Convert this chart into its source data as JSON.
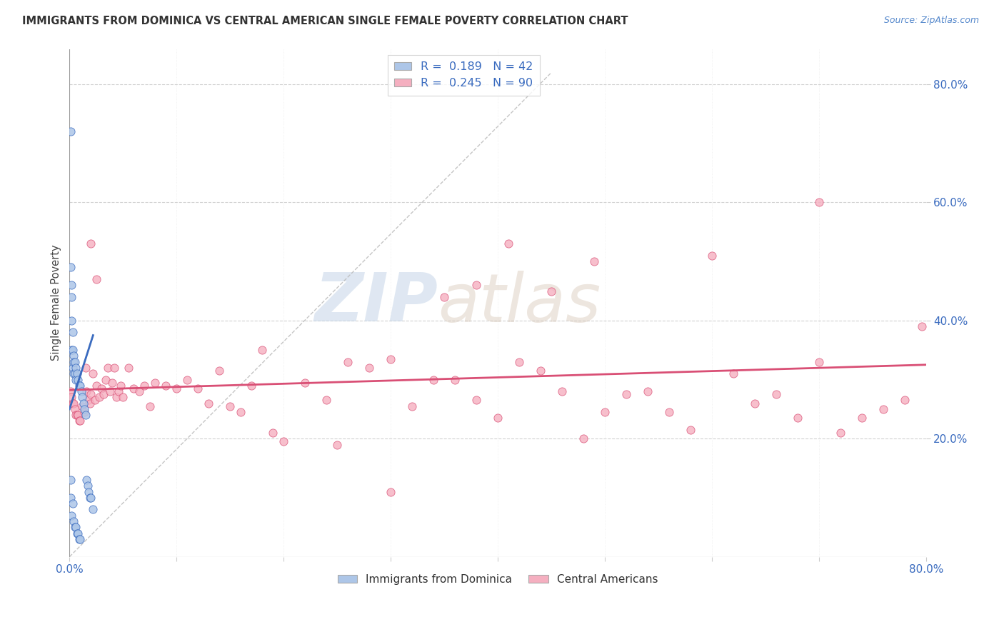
{
  "title": "IMMIGRANTS FROM DOMINICA VS CENTRAL AMERICAN SINGLE FEMALE POVERTY CORRELATION CHART",
  "source": "Source: ZipAtlas.com",
  "ylabel": "Single Female Poverty",
  "ytick_labels": [
    "20.0%",
    "40.0%",
    "60.0%",
    "80.0%"
  ],
  "ytick_values": [
    0.2,
    0.4,
    0.6,
    0.8
  ],
  "xlim": [
    0.0,
    0.8
  ],
  "ylim": [
    0.0,
    0.86
  ],
  "legend_label1": "Immigrants from Dominica",
  "legend_label2": "Central Americans",
  "R1": "0.189",
  "N1": "42",
  "R2": "0.245",
  "N2": "90",
  "color1": "#adc6e8",
  "color2": "#f5afc0",
  "line_color1": "#3a6bbf",
  "line_color2": "#d94f75",
  "background_color": "#ffffff",
  "watermark_zip": "ZIP",
  "watermark_atlas": "atlas",
  "dominica_x": [
    0.001,
    0.001,
    0.001,
    0.001,
    0.002,
    0.002,
    0.002,
    0.002,
    0.002,
    0.003,
    0.003,
    0.003,
    0.003,
    0.004,
    0.004,
    0.004,
    0.004,
    0.005,
    0.005,
    0.005,
    0.006,
    0.006,
    0.006,
    0.007,
    0.007,
    0.008,
    0.008,
    0.009,
    0.009,
    0.01,
    0.01,
    0.011,
    0.012,
    0.013,
    0.014,
    0.015,
    0.016,
    0.017,
    0.018,
    0.019,
    0.02,
    0.022
  ],
  "dominica_y": [
    0.72,
    0.49,
    0.13,
    0.1,
    0.46,
    0.44,
    0.4,
    0.35,
    0.07,
    0.38,
    0.35,
    0.32,
    0.09,
    0.34,
    0.33,
    0.31,
    0.06,
    0.33,
    0.31,
    0.05,
    0.32,
    0.3,
    0.05,
    0.31,
    0.04,
    0.3,
    0.04,
    0.29,
    0.03,
    0.29,
    0.03,
    0.28,
    0.27,
    0.26,
    0.25,
    0.24,
    0.13,
    0.12,
    0.11,
    0.1,
    0.1,
    0.08
  ],
  "central_x": [
    0.001,
    0.002,
    0.003,
    0.004,
    0.005,
    0.006,
    0.007,
    0.008,
    0.009,
    0.01,
    0.012,
    0.014,
    0.015,
    0.016,
    0.018,
    0.019,
    0.02,
    0.022,
    0.024,
    0.025,
    0.028,
    0.03,
    0.032,
    0.034,
    0.036,
    0.038,
    0.04,
    0.042,
    0.044,
    0.046,
    0.048,
    0.05,
    0.055,
    0.06,
    0.065,
    0.07,
    0.075,
    0.08,
    0.09,
    0.1,
    0.11,
    0.12,
    0.13,
    0.14,
    0.15,
    0.16,
    0.17,
    0.18,
    0.19,
    0.2,
    0.22,
    0.24,
    0.26,
    0.28,
    0.3,
    0.32,
    0.34,
    0.36,
    0.38,
    0.4,
    0.42,
    0.44,
    0.46,
    0.48,
    0.5,
    0.52,
    0.54,
    0.56,
    0.58,
    0.6,
    0.62,
    0.64,
    0.66,
    0.68,
    0.7,
    0.72,
    0.74,
    0.76,
    0.78,
    0.796,
    0.25,
    0.3,
    0.02,
    0.025,
    0.45,
    0.49,
    0.41,
    0.38,
    0.35,
    0.7
  ],
  "central_y": [
    0.28,
    0.27,
    0.26,
    0.26,
    0.25,
    0.24,
    0.24,
    0.24,
    0.23,
    0.23,
    0.255,
    0.245,
    0.32,
    0.28,
    0.265,
    0.26,
    0.275,
    0.31,
    0.265,
    0.29,
    0.27,
    0.285,
    0.275,
    0.3,
    0.32,
    0.28,
    0.295,
    0.32,
    0.27,
    0.28,
    0.29,
    0.27,
    0.32,
    0.285,
    0.28,
    0.29,
    0.255,
    0.295,
    0.29,
    0.285,
    0.3,
    0.285,
    0.26,
    0.315,
    0.255,
    0.245,
    0.29,
    0.35,
    0.21,
    0.195,
    0.295,
    0.265,
    0.33,
    0.32,
    0.335,
    0.255,
    0.3,
    0.3,
    0.265,
    0.235,
    0.33,
    0.315,
    0.28,
    0.2,
    0.245,
    0.275,
    0.28,
    0.245,
    0.215,
    0.51,
    0.31,
    0.26,
    0.275,
    0.235,
    0.33,
    0.21,
    0.235,
    0.25,
    0.265,
    0.39,
    0.19,
    0.11,
    0.53,
    0.47,
    0.45,
    0.5,
    0.53,
    0.46,
    0.44,
    0.6
  ]
}
